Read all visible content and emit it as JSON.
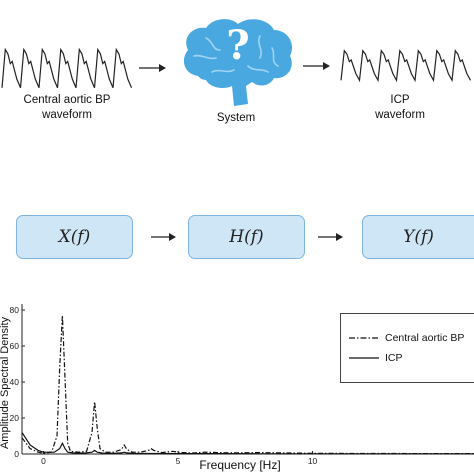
{
  "top": {
    "input_label": [
      "Central aortic BP",
      "waveform"
    ],
    "system_label": "System",
    "output_label": [
      "ICP",
      "waveform"
    ],
    "question_mark": "?"
  },
  "transfer": {
    "input": "X(f)",
    "system": "H(f)",
    "output": "Y(f)"
  },
  "colors": {
    "brain": "#4aa8e0",
    "box_fill": "#cfe6f7",
    "box_border": "#7fb5de"
  },
  "chart_data": {
    "type": "line",
    "xlabel": "Frequency [Hz]",
    "ylabel": "Amplitude Spectral Density",
    "xlim": [
      -0.8,
      16
    ],
    "ylim": [
      0,
      80
    ],
    "x_ticks": [
      0,
      5,
      10
    ],
    "y_ticks": [
      0,
      20,
      40,
      60,
      80
    ],
    "legend": "top-right",
    "series": [
      {
        "name": "Central aortic BP",
        "style": "dash-dot",
        "x": [
          -0.8,
          -0.5,
          -0.2,
          0.0,
          0.3,
          0.5,
          0.6,
          0.7,
          0.8,
          0.9,
          1.0,
          1.3,
          1.6,
          1.8,
          1.9,
          2.0,
          2.1,
          2.3,
          2.6,
          2.9,
          3.0,
          3.1,
          3.3,
          3.6,
          3.9,
          4.0,
          4.1,
          4.4,
          4.8,
          5.0,
          5.5,
          6.0,
          7.0,
          8.0,
          10.0,
          12.0,
          16.0
        ],
        "y": [
          9,
          3,
          1,
          0.5,
          1,
          10,
          48,
          77,
          42,
          6,
          1.5,
          1,
          1.5,
          12,
          29,
          14,
          3,
          1,
          1,
          2.5,
          5,
          2.5,
          1,
          1,
          2,
          3,
          2,
          0.8,
          1.5,
          1,
          0.5,
          1,
          0.6,
          0.8,
          0.4,
          0.3,
          0.2
        ]
      },
      {
        "name": "ICP",
        "style": "solid",
        "x": [
          -0.8,
          -0.5,
          -0.2,
          0.0,
          0.4,
          0.6,
          0.7,
          0.8,
          0.9,
          1.1,
          1.5,
          1.8,
          1.9,
          2.0,
          2.2,
          2.6,
          2.9,
          3.0,
          3.1,
          3.4,
          4.0,
          5.0,
          6.0,
          8.0,
          10.0,
          12.0,
          16.0
        ],
        "y": [
          12,
          5,
          2,
          1,
          1,
          3,
          6,
          3,
          1,
          0.6,
          0.5,
          1,
          2,
          1,
          0.5,
          0.4,
          0.6,
          1,
          0.6,
          0.3,
          0.3,
          0.2,
          0.2,
          0.1,
          0.1,
          0.1,
          0.1
        ]
      }
    ]
  }
}
